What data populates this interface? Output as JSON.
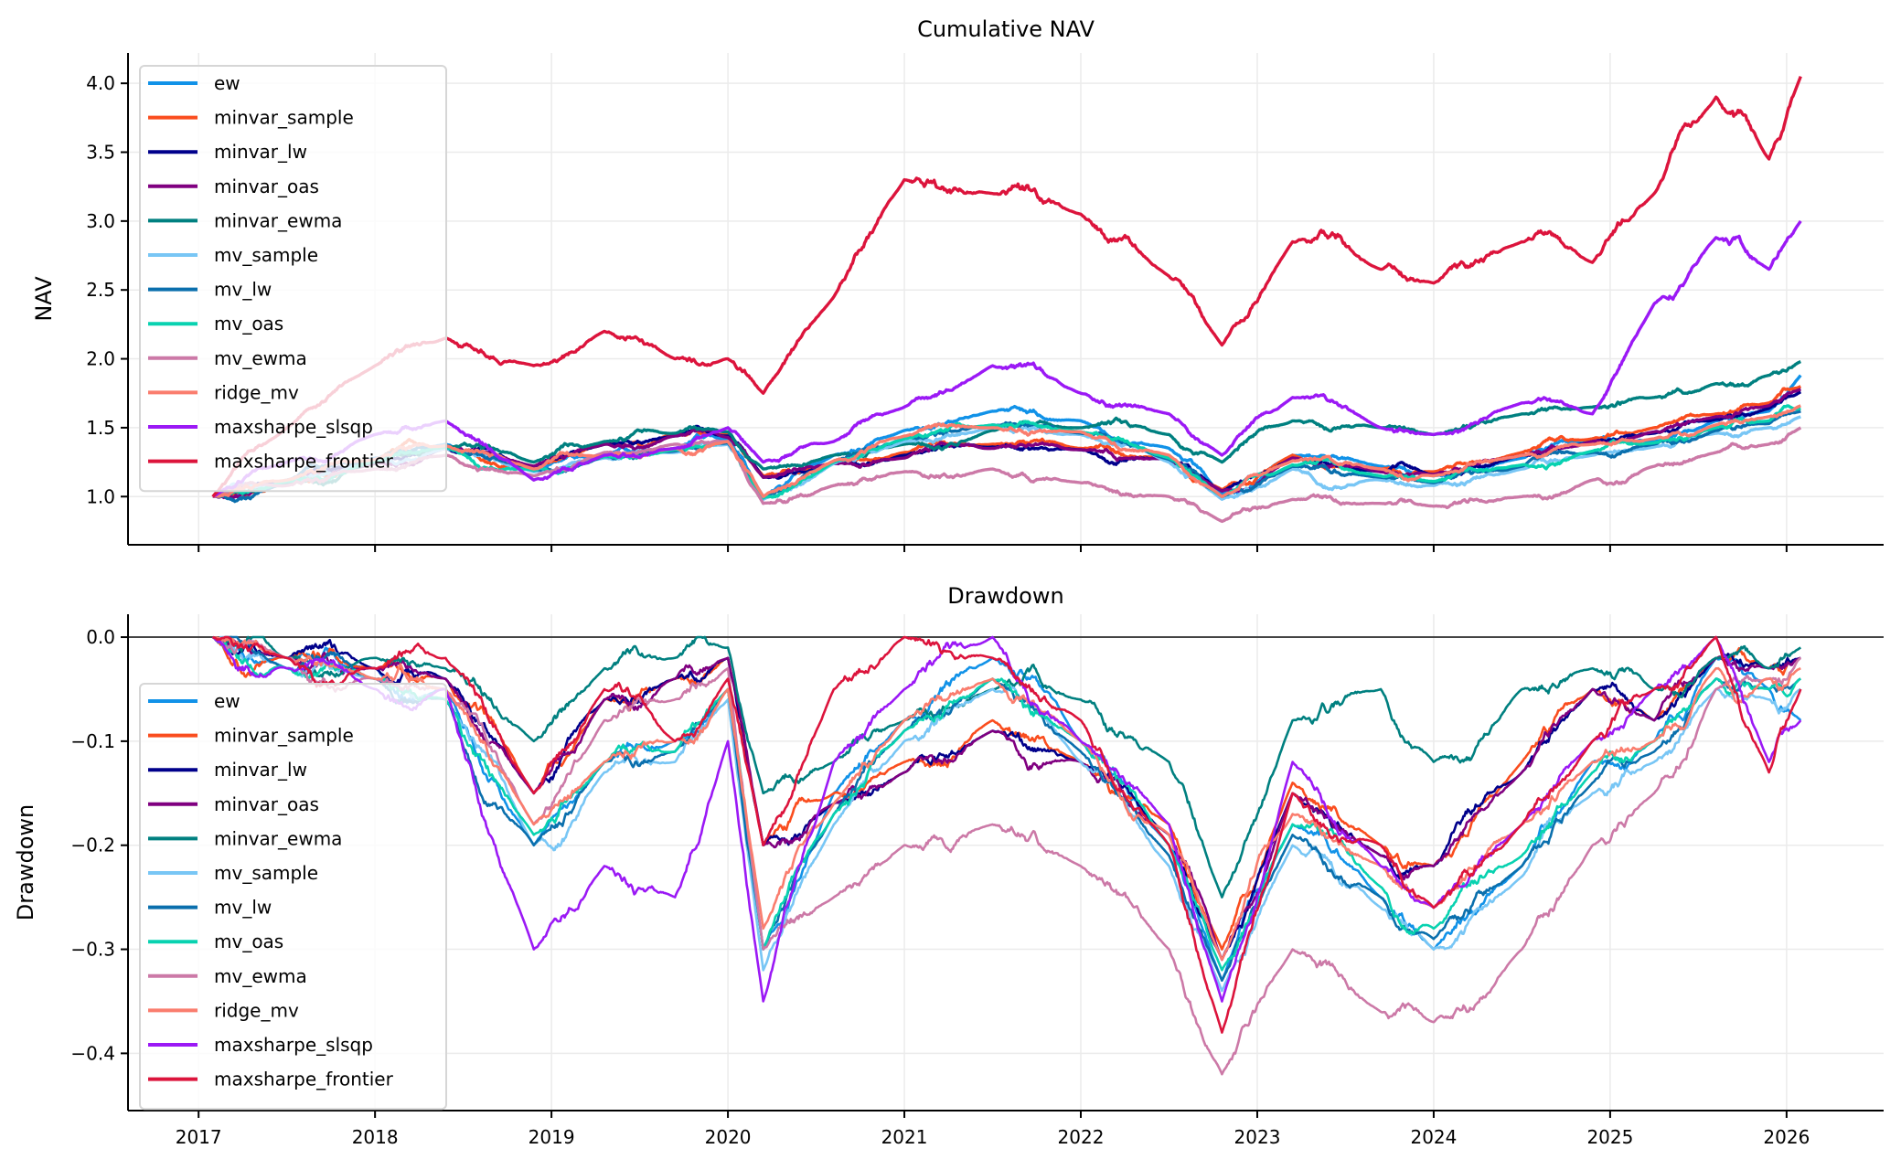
{
  "chart_data": [
    {
      "type": "line",
      "title": "Cumulative NAV",
      "xlabel": "",
      "ylabel": "NAV",
      "xlim": [
        2016.6,
        2026.55
      ],
      "ylim": [
        0.65,
        4.22
      ],
      "x_ticks": [
        2017,
        2018,
        2019,
        2020,
        2021,
        2022,
        2023,
        2024,
        2025,
        2026
      ],
      "x_tick_labels_visible": false,
      "y_ticks": [
        1.0,
        1.5,
        2.0,
        2.5,
        3.0,
        3.5,
        4.0
      ],
      "y_tick_labels": [
        "1.0",
        "1.5",
        "2.0",
        "2.5",
        "3.0",
        "3.5",
        "4.0"
      ],
      "grid": true,
      "legend_placement": "upper-left",
      "x": [
        2017.08,
        2017.5,
        2018.0,
        2018.4,
        2018.9,
        2019.3,
        2019.7,
        2020.0,
        2020.2,
        2020.6,
        2021.0,
        2021.5,
        2022.0,
        2022.5,
        2022.8,
        2023.2,
        2023.7,
        2024.0,
        2024.5,
        2024.9,
        2025.25,
        2025.6,
        2025.9,
        2026.08
      ],
      "series": [
        {
          "name": "ew",
          "color": "#1192e8",
          "values": [
            1.0,
            1.12,
            1.28,
            1.38,
            1.2,
            1.3,
            1.35,
            1.42,
            1.0,
            1.3,
            1.48,
            1.62,
            1.55,
            1.35,
            1.02,
            1.3,
            1.22,
            1.15,
            1.28,
            1.42,
            1.4,
            1.55,
            1.62,
            1.88
          ]
        },
        {
          "name": "minvar_sample",
          "color": "#fa4d1e",
          "values": [
            1.0,
            1.1,
            1.25,
            1.36,
            1.22,
            1.38,
            1.45,
            1.45,
            1.15,
            1.25,
            1.32,
            1.38,
            1.35,
            1.28,
            1.05,
            1.3,
            1.2,
            1.18,
            1.32,
            1.42,
            1.5,
            1.6,
            1.68,
            1.8
          ]
        },
        {
          "name": "minvar_lw",
          "color": "#00008b",
          "values": [
            1.0,
            1.1,
            1.24,
            1.35,
            1.22,
            1.38,
            1.44,
            1.44,
            1.14,
            1.24,
            1.3,
            1.36,
            1.34,
            1.27,
            1.04,
            1.28,
            1.18,
            1.16,
            1.3,
            1.4,
            1.46,
            1.56,
            1.64,
            1.76
          ]
        },
        {
          "name": "minvar_oas",
          "color": "#800080",
          "values": [
            1.0,
            1.1,
            1.24,
            1.35,
            1.22,
            1.38,
            1.44,
            1.43,
            1.14,
            1.24,
            1.28,
            1.35,
            1.34,
            1.27,
            1.04,
            1.28,
            1.18,
            1.16,
            1.3,
            1.4,
            1.47,
            1.58,
            1.66,
            1.78
          ]
        },
        {
          "name": "minvar_ewma",
          "color": "#008080",
          "values": [
            1.0,
            1.1,
            1.25,
            1.37,
            1.25,
            1.4,
            1.46,
            1.47,
            1.2,
            1.3,
            1.38,
            1.48,
            1.5,
            1.45,
            1.25,
            1.55,
            1.5,
            1.45,
            1.6,
            1.65,
            1.72,
            1.82,
            1.88,
            1.98
          ]
        },
        {
          "name": "mv_sample",
          "color": "#78c6f5",
          "values": [
            1.0,
            1.11,
            1.26,
            1.35,
            1.18,
            1.28,
            1.32,
            1.38,
            0.98,
            1.24,
            1.4,
            1.5,
            1.45,
            1.25,
            0.98,
            1.2,
            1.12,
            1.08,
            1.2,
            1.3,
            1.36,
            1.46,
            1.5,
            1.58
          ]
        },
        {
          "name": "mv_lw",
          "color": "#0a6fad",
          "values": [
            1.0,
            1.11,
            1.26,
            1.36,
            1.19,
            1.29,
            1.33,
            1.39,
            0.99,
            1.25,
            1.42,
            1.52,
            1.46,
            1.27,
            1.0,
            1.22,
            1.14,
            1.1,
            1.22,
            1.32,
            1.38,
            1.48,
            1.53,
            1.62
          ]
        },
        {
          "name": "mv_oas",
          "color": "#08d2b0",
          "values": [
            1.0,
            1.11,
            1.26,
            1.36,
            1.19,
            1.29,
            1.34,
            1.4,
            0.99,
            1.25,
            1.42,
            1.52,
            1.47,
            1.28,
            1.0,
            1.23,
            1.15,
            1.11,
            1.23,
            1.33,
            1.39,
            1.5,
            1.55,
            1.64
          ]
        },
        {
          "name": "mv_ewma",
          "color": "#cc79a7",
          "values": [
            1.0,
            1.08,
            1.2,
            1.3,
            1.15,
            1.32,
            1.38,
            1.4,
            0.95,
            1.08,
            1.18,
            1.2,
            1.1,
            1.0,
            0.82,
            0.98,
            0.95,
            0.93,
            1.0,
            1.12,
            1.22,
            1.32,
            1.38,
            1.5
          ]
        },
        {
          "name": "ridge_mv",
          "color": "#fa7d6e",
          "values": [
            1.0,
            1.12,
            1.27,
            1.37,
            1.2,
            1.3,
            1.35,
            1.4,
            1.0,
            1.26,
            1.44,
            1.5,
            1.47,
            1.3,
            1.0,
            1.26,
            1.2,
            1.15,
            1.3,
            1.38,
            1.42,
            1.52,
            1.58,
            1.66
          ]
        },
        {
          "name": "maxsharpe_slsqp",
          "color": "#9b19f5",
          "values": [
            1.0,
            1.25,
            1.45,
            1.55,
            1.12,
            1.3,
            1.35,
            1.5,
            1.25,
            1.4,
            1.65,
            1.95,
            1.75,
            1.6,
            1.3,
            1.72,
            1.5,
            1.45,
            1.68,
            1.6,
            2.4,
            2.88,
            2.65,
            3.0
          ]
        },
        {
          "name": "maxsharpe_frontier",
          "color": "#dc143c",
          "values": [
            1.0,
            1.5,
            1.95,
            2.15,
            1.95,
            2.2,
            2.0,
            2.0,
            1.75,
            2.45,
            3.3,
            3.2,
            3.05,
            2.6,
            2.1,
            2.85,
            2.65,
            2.55,
            2.85,
            2.7,
            3.2,
            3.9,
            3.45,
            4.05
          ]
        }
      ]
    },
    {
      "type": "line",
      "title": "Drawdown",
      "xlabel": "",
      "ylabel": "Drawdown",
      "xlim": [
        2016.6,
        2026.55
      ],
      "ylim": [
        -0.455,
        0.022
      ],
      "x_ticks": [
        2017,
        2018,
        2019,
        2020,
        2021,
        2022,
        2023,
        2024,
        2025,
        2026
      ],
      "x_tick_labels": [
        "2017",
        "2018",
        "2019",
        "2020",
        "2021",
        "2022",
        "2023",
        "2024",
        "2025",
        "2026"
      ],
      "y_ticks": [
        0.0,
        -0.1,
        -0.2,
        -0.3,
        -0.4
      ],
      "y_tick_labels": [
        "0.0",
        "−0.1",
        "−0.2",
        "−0.3",
        "−0.4"
      ],
      "reference_line": 0.0,
      "grid": true,
      "legend_placement": "center-left",
      "x": [
        2017.08,
        2017.5,
        2018.0,
        2018.4,
        2018.9,
        2019.3,
        2019.7,
        2020.0,
        2020.2,
        2020.6,
        2021.0,
        2021.5,
        2022.0,
        2022.5,
        2022.8,
        2023.2,
        2023.7,
        2024.0,
        2024.5,
        2024.9,
        2025.25,
        2025.6,
        2025.9,
        2026.08
      ],
      "series": [
        {
          "name": "ew",
          "color": "#1192e8",
          "values": [
            0.0,
            -0.02,
            -0.03,
            -0.05,
            -0.2,
            -0.12,
            -0.1,
            -0.05,
            -0.3,
            -0.15,
            -0.08,
            -0.02,
            -0.1,
            -0.2,
            -0.33,
            -0.18,
            -0.25,
            -0.3,
            -0.22,
            -0.12,
            -0.1,
            -0.02,
            -0.05,
            -0.08
          ]
        },
        {
          "name": "minvar_sample",
          "color": "#fa4d1e",
          "values": [
            0.0,
            -0.02,
            -0.03,
            -0.04,
            -0.15,
            -0.06,
            -0.04,
            -0.02,
            -0.2,
            -0.15,
            -0.12,
            -0.08,
            -0.12,
            -0.18,
            -0.3,
            -0.14,
            -0.2,
            -0.22,
            -0.12,
            -0.05,
            -0.08,
            -0.02,
            -0.03,
            -0.02
          ]
        },
        {
          "name": "minvar_lw",
          "color": "#00008b",
          "values": [
            0.0,
            -0.02,
            -0.03,
            -0.04,
            -0.15,
            -0.06,
            -0.04,
            -0.02,
            -0.2,
            -0.16,
            -0.13,
            -0.09,
            -0.12,
            -0.19,
            -0.31,
            -0.15,
            -0.21,
            -0.22,
            -0.13,
            -0.05,
            -0.08,
            -0.02,
            -0.03,
            -0.02
          ]
        },
        {
          "name": "minvar_oas",
          "color": "#800080",
          "values": [
            0.0,
            -0.02,
            -0.03,
            -0.04,
            -0.15,
            -0.06,
            -0.04,
            -0.02,
            -0.2,
            -0.16,
            -0.13,
            -0.09,
            -0.12,
            -0.19,
            -0.31,
            -0.15,
            -0.21,
            -0.22,
            -0.13,
            -0.05,
            -0.08,
            -0.02,
            -0.03,
            -0.02
          ]
        },
        {
          "name": "minvar_ewma",
          "color": "#008080",
          "values": [
            0.0,
            -0.02,
            -0.02,
            -0.03,
            -0.1,
            -0.03,
            -0.02,
            -0.01,
            -0.15,
            -0.12,
            -0.08,
            -0.05,
            -0.06,
            -0.12,
            -0.25,
            -0.08,
            -0.05,
            -0.12,
            -0.05,
            -0.03,
            -0.05,
            -0.02,
            -0.03,
            -0.01
          ]
        },
        {
          "name": "mv_sample",
          "color": "#78c6f5",
          "values": [
            0.0,
            -0.03,
            -0.04,
            -0.06,
            -0.2,
            -0.13,
            -0.12,
            -0.06,
            -0.32,
            -0.18,
            -0.1,
            -0.05,
            -0.12,
            -0.22,
            -0.34,
            -0.2,
            -0.26,
            -0.3,
            -0.23,
            -0.15,
            -0.12,
            -0.05,
            -0.06,
            -0.05
          ]
        },
        {
          "name": "mv_lw",
          "color": "#0a6fad",
          "values": [
            0.0,
            -0.03,
            -0.04,
            -0.06,
            -0.2,
            -0.12,
            -0.11,
            -0.05,
            -0.3,
            -0.17,
            -0.09,
            -0.04,
            -0.11,
            -0.21,
            -0.33,
            -0.19,
            -0.25,
            -0.29,
            -0.22,
            -0.14,
            -0.11,
            -0.04,
            -0.05,
            -0.04
          ]
        },
        {
          "name": "mv_oas",
          "color": "#08d2b0",
          "values": [
            0.0,
            -0.03,
            -0.04,
            -0.06,
            -0.19,
            -0.12,
            -0.11,
            -0.05,
            -0.3,
            -0.17,
            -0.09,
            -0.04,
            -0.1,
            -0.2,
            -0.32,
            -0.18,
            -0.24,
            -0.28,
            -0.21,
            -0.13,
            -0.1,
            -0.04,
            -0.05,
            -0.04
          ]
        },
        {
          "name": "mv_ewma",
          "color": "#cc79a7",
          "values": [
            0.0,
            -0.02,
            -0.04,
            -0.05,
            -0.18,
            -0.08,
            -0.06,
            -0.03,
            -0.3,
            -0.25,
            -0.2,
            -0.18,
            -0.22,
            -0.3,
            -0.42,
            -0.3,
            -0.36,
            -0.37,
            -0.3,
            -0.2,
            -0.15,
            -0.05,
            -0.04,
            -0.02
          ]
        },
        {
          "name": "ridge_mv",
          "color": "#fa7d6e",
          "values": [
            0.0,
            -0.02,
            -0.04,
            -0.05,
            -0.18,
            -0.12,
            -0.1,
            -0.05,
            -0.28,
            -0.16,
            -0.08,
            -0.04,
            -0.1,
            -0.19,
            -0.31,
            -0.17,
            -0.22,
            -0.26,
            -0.18,
            -0.12,
            -0.1,
            -0.03,
            -0.04,
            -0.03
          ]
        },
        {
          "name": "maxsharpe_slsqp",
          "color": "#9b19f5",
          "values": [
            0.0,
            -0.03,
            -0.05,
            -0.05,
            -0.3,
            -0.22,
            -0.25,
            -0.1,
            -0.35,
            -0.12,
            -0.05,
            0.0,
            -0.1,
            -0.18,
            -0.35,
            -0.12,
            -0.22,
            -0.26,
            -0.18,
            -0.1,
            -0.05,
            0.0,
            -0.12,
            -0.08
          ]
        },
        {
          "name": "maxsharpe_frontier",
          "color": "#dc143c",
          "values": [
            0.0,
            -0.02,
            -0.03,
            -0.02,
            -0.15,
            -0.05,
            -0.1,
            -0.04,
            -0.2,
            -0.05,
            0.0,
            -0.02,
            -0.08,
            -0.2,
            -0.38,
            -0.15,
            -0.2,
            -0.26,
            -0.18,
            -0.1,
            -0.05,
            0.0,
            -0.13,
            -0.05
          ]
        }
      ]
    }
  ]
}
